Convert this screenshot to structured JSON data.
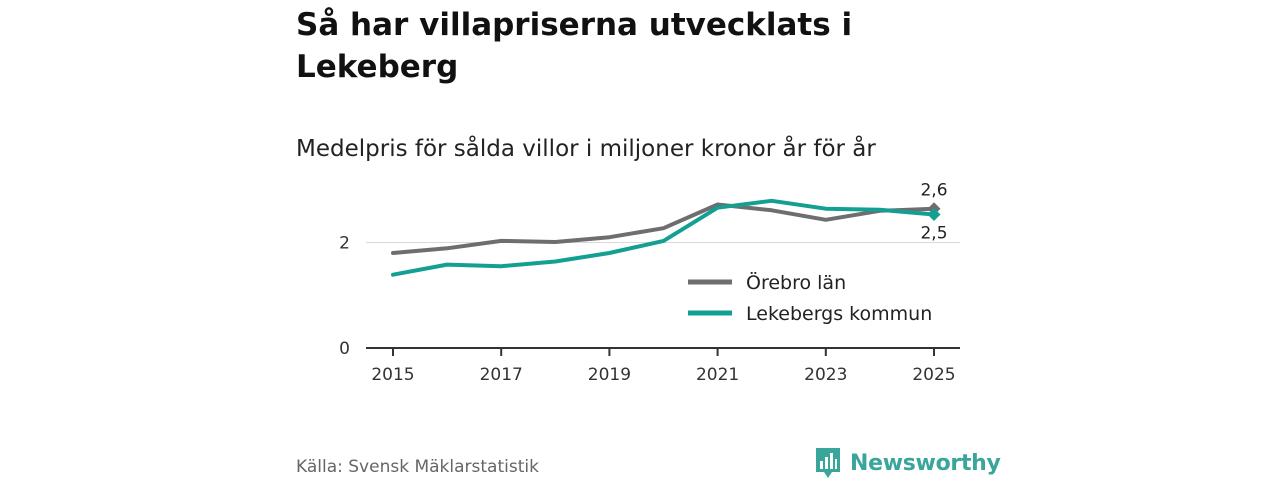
{
  "title": "Så har villapriserna utvecklats i Lekeberg",
  "subtitle": "Medelpris för sålda villor i miljoner kronor år för år",
  "source": "Källa: Svensk Mäklarstatistik",
  "brand": {
    "name": "Newsworthy",
    "icon": "newsworthy-logo-icon",
    "color": "#3aa59a"
  },
  "chart_data": {
    "type": "line",
    "title": "Så har villapriserna utvecklats i Lekeberg",
    "subtitle": "Medelpris för sålda villor i miljoner kronor år för år",
    "xlabel": "",
    "ylabel": "",
    "x": [
      2015,
      2016,
      2017,
      2018,
      2019,
      2020,
      2021,
      2022,
      2023,
      2024,
      2025
    ],
    "xticks": [
      "2015",
      "2017",
      "2019",
      "2021",
      "2023",
      "2025"
    ],
    "xtick_values": [
      2015,
      2017,
      2019,
      2021,
      2023,
      2025
    ],
    "yticks": [
      "0",
      "2"
    ],
    "ytick_values": [
      0,
      2
    ],
    "ylim": [
      0,
      2.9
    ],
    "xlim": [
      2014.5,
      2025.5
    ],
    "grid": true,
    "legend_position": "lower-right",
    "series": [
      {
        "name": "Örebro län",
        "color": "#6e6e70",
        "values": [
          1.8,
          1.89,
          2.03,
          2.01,
          2.1,
          2.27,
          2.72,
          2.61,
          2.43,
          2.6,
          2.64
        ],
        "end_label": "2,6"
      },
      {
        "name": "Lekebergs kommun",
        "color": "#13a093",
        "values": [
          1.39,
          1.58,
          1.55,
          1.64,
          1.8,
          2.03,
          2.66,
          2.79,
          2.64,
          2.62,
          2.53
        ],
        "end_label": "2,5"
      }
    ]
  }
}
